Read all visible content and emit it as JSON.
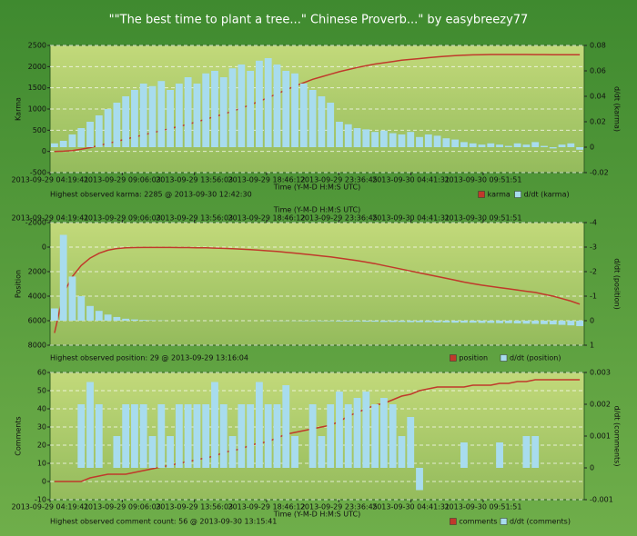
{
  "title": "\"\"The best time to plant a tree...\" Chinese Proverb...\" by easybreezy77",
  "chart_data": [
    {
      "type": "combo",
      "xlabel": "Time (Y-M-D H:M:S UTC)",
      "xticks": [
        "2013-09-29 04:19:41",
        "2013-09-29 09:06:03",
        "2013-09-29 13:56:03",
        "2013-09-29 18:46:12",
        "2013-09-29 23:36:45",
        "2013-09-30 04:41:31",
        "2013-09-30 09:51:51"
      ],
      "ylabel": "Karma",
      "y2label": "d/dt (karma)",
      "ylim": [
        -500,
        2500
      ],
      "yticks": [
        -500,
        0,
        500,
        1000,
        1500,
        2000,
        2500
      ],
      "y2lim": [
        -0.02,
        0.08
      ],
      "y2ticks": [
        -0.02,
        0,
        0.02,
        0.04,
        0.06,
        0.08
      ],
      "grid": true,
      "annotation": "Highest observed karma: 2285 @ 2013-09-30 12:42:30",
      "series": [
        {
          "name": "karma",
          "color": "#c0392b",
          "values": [
            0,
            5,
            20,
            50,
            90,
            140,
            190,
            240,
            290,
            340,
            390,
            440,
            490,
            540,
            590,
            640,
            700,
            760,
            820,
            880,
            950,
            1020,
            1100,
            1180,
            1270,
            1360,
            1450,
            1540,
            1620,
            1700,
            1760,
            1820,
            1880,
            1930,
            1980,
            2020,
            2060,
            2090,
            2120,
            2150,
            2170,
            2190,
            2210,
            2230,
            2245,
            2260,
            2270,
            2278,
            2282,
            2285,
            2285,
            2285,
            2285,
            2285,
            2284,
            2283,
            2282,
            2282,
            2281,
            2280
          ]
        },
        {
          "name": "d/dt (karma)",
          "color": "#a8dcee",
          "axis": "y2",
          "kind": "bar",
          "values": [
            0.003,
            0.005,
            0.01,
            0.015,
            0.02,
            0.025,
            0.03,
            0.035,
            0.04,
            0.045,
            0.05,
            0.048,
            0.052,
            0.045,
            0.05,
            0.055,
            0.05,
            0.058,
            0.06,
            0.055,
            0.062,
            0.065,
            0.06,
            0.068,
            0.07,
            0.065,
            0.06,
            0.058,
            0.05,
            0.045,
            0.04,
            0.035,
            0.02,
            0.018,
            0.015,
            0.014,
            0.012,
            0.013,
            0.011,
            0.01,
            0.012,
            0.008,
            0.01,
            0.009,
            0.007,
            0.006,
            0.004,
            0.003,
            0.002,
            0.003,
            0.002,
            0.001,
            0.003,
            0.002,
            0.004,
            0.001,
            -0.001,
            0.002,
            0.003,
            -0.002
          ]
        }
      ]
    },
    {
      "type": "combo",
      "xlabel": "Time (Y-M-D H:M:S UTC)",
      "xticks": [
        "2013-09-29 04:19:41",
        "2013-09-29 09:06:03",
        "2013-09-29 13:56:03",
        "2013-09-29 18:46:12",
        "2013-09-29 23:36:45",
        "2013-09-30 04:41:31",
        "2013-09-30 09:51:51"
      ],
      "ylabel": "Position",
      "y2label": "d/dt (position)",
      "ylim": [
        8000,
        -2000
      ],
      "yticks": [
        -2000,
        0,
        2000,
        4000,
        6000,
        8000
      ],
      "y2lim": [
        1,
        -4
      ],
      "y2ticks": [
        -4,
        -3,
        -2,
        -1,
        0,
        1
      ],
      "grid": true,
      "annotation": "Highest observed position: 29 @ 2013-09-29 13:16:04",
      "series": [
        {
          "name": "position",
          "color": "#c0392b",
          "values": [
            7000,
            3800,
            2400,
            1500,
            900,
            500,
            250,
            120,
            60,
            40,
            30,
            29,
            29,
            30,
            35,
            40,
            50,
            60,
            80,
            100,
            130,
            160,
            200,
            250,
            300,
            350,
            420,
            490,
            560,
            640,
            720,
            800,
            900,
            1000,
            1100,
            1220,
            1350,
            1500,
            1650,
            1800,
            1950,
            2100,
            2250,
            2400,
            2550,
            2700,
            2850,
            2980,
            3100,
            3200,
            3300,
            3400,
            3500,
            3600,
            3700,
            3850,
            4000,
            4200,
            4400,
            4650
          ]
        },
        {
          "name": "d/dt (position)",
          "color": "#a8dcee",
          "axis": "y2",
          "kind": "bar",
          "values": [
            -0.5,
            -3.5,
            -1.8,
            -1,
            -0.6,
            -0.4,
            -0.25,
            -0.15,
            -0.08,
            -0.05,
            -0.03,
            -0.02,
            -0.01,
            0,
            0,
            0,
            0,
            0,
            0,
            0,
            0,
            0,
            0,
            0,
            0.01,
            0.01,
            0.01,
            0.01,
            0.02,
            0.02,
            0.02,
            0.02,
            0.03,
            0.03,
            0.03,
            0.04,
            0.04,
            0.05,
            0.05,
            0.05,
            0.06,
            0.06,
            0.06,
            0.07,
            0.07,
            0.08,
            0.08,
            0.08,
            0.09,
            0.09,
            0.1,
            0.1,
            0.11,
            0.12,
            0.13,
            0.14,
            0.15,
            0.17,
            0.19,
            0.22
          ]
        }
      ]
    },
    {
      "type": "combo",
      "xlabel": "Time (Y-M-D H:M:S UTC)",
      "xticks": [
        "2013-09-29 04:19:41",
        "2013-09-29 09:06:03",
        "2013-09-29 13:56:03",
        "2013-09-29 18:46:12",
        "2013-09-29 23:36:45",
        "2013-09-30 04:41:31",
        "2013-09-30 09:51:51"
      ],
      "ylabel": "Comments",
      "y2label": "d/dt (comments)",
      "ylim": [
        -10,
        60
      ],
      "yticks": [
        -10,
        0,
        10,
        20,
        30,
        40,
        50,
        60
      ],
      "y2lim": [
        -0.001,
        0.003
      ],
      "y2ticks": [
        -0.001,
        0,
        0.001,
        0.002,
        0.003
      ],
      "grid": true,
      "annotation": "Highest observed comment count: 56 @ 2013-09-30 13:15:41",
      "series": [
        {
          "name": "comments",
          "color": "#c0392b",
          "values": [
            0,
            0,
            0,
            0,
            2,
            3,
            4,
            4,
            4,
            5,
            6,
            7,
            8,
            9,
            10,
            11,
            12,
            13,
            14,
            16,
            17,
            18,
            20,
            21,
            22,
            24,
            26,
            27,
            28,
            29,
            30,
            31,
            33,
            36,
            38,
            40,
            42,
            43,
            45,
            47,
            48,
            50,
            51,
            52,
            52,
            52,
            52,
            53,
            53,
            53,
            54,
            54,
            55,
            55,
            56,
            56,
            56,
            56,
            56,
            56
          ]
        },
        {
          "name": "d/dt (comments)",
          "color": "#a8dcee",
          "axis": "y2",
          "kind": "bar",
          "values": [
            0,
            0,
            0,
            0.002,
            0.0027,
            0.002,
            0,
            0.001,
            0.002,
            0.002,
            0.002,
            0.001,
            0.002,
            0.001,
            0.002,
            0.002,
            0.002,
            0.002,
            0.0027,
            0.002,
            0.001,
            0.002,
            0.002,
            0.0027,
            0.002,
            0.002,
            0.0026,
            0.001,
            0,
            0.002,
            0.001,
            0.002,
            0.0024,
            0.002,
            0.0022,
            0.0024,
            0.002,
            0.0022,
            0.002,
            0.001,
            0.0016,
            -0.0007,
            0,
            0,
            0,
            0,
            0.0008,
            0,
            0,
            0,
            0.0008,
            0,
            0,
            0.001,
            0.001,
            0,
            0,
            0,
            0,
            0
          ]
        }
      ]
    }
  ]
}
